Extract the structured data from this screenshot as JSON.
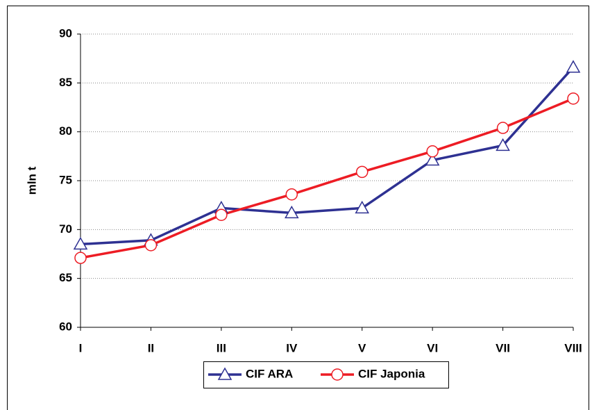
{
  "chart_data": {
    "type": "line",
    "y_label": "mln t",
    "categories": [
      "I",
      "II",
      "III",
      "IV",
      "V",
      "VI",
      "VII",
      "VIII"
    ],
    "series": [
      {
        "name": "CIF ARA",
        "color": "#2e3192",
        "marker": "triangle",
        "values": [
          68.5,
          68.9,
          72.2,
          71.7,
          72.2,
          77.1,
          78.6,
          86.6
        ]
      },
      {
        "name": "CIF Japonia",
        "color": "#ed1c24",
        "marker": "circle",
        "values": [
          67.1,
          68.4,
          71.5,
          73.6,
          75.9,
          78.0,
          80.4,
          83.4
        ]
      }
    ],
    "ylim": [
      60,
      90
    ],
    "yticks": [
      60,
      65,
      70,
      75,
      80,
      85,
      90
    ],
    "grid": true
  }
}
